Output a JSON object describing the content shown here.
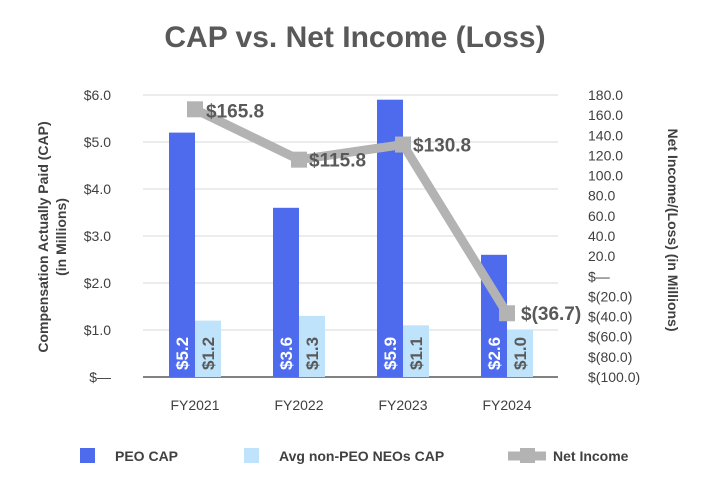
{
  "chart_data": {
    "type": "bar+line",
    "title": "CAP vs. Net Income (Loss)",
    "categories": [
      "FY2021",
      "FY2022",
      "FY2023",
      "FY2024"
    ],
    "ylabel": [
      "Compensation Actually Paid (CAP)",
      "(in Millions)"
    ],
    "y2label": "Net Income/(Loss) (in Millions)",
    "ylim": [
      0,
      6
    ],
    "y_ticks": [
      0,
      1,
      2,
      3,
      4,
      5,
      6
    ],
    "y_tick_labels": [
      "$—",
      "$1.0",
      "$2.0",
      "$3.0",
      "$4.0",
      "$5.0",
      "$6.0"
    ],
    "y2lim": [
      -100,
      180
    ],
    "y2_ticks": [
      -100,
      -80,
      -60,
      -40,
      -20,
      0,
      20,
      40,
      60,
      80,
      100,
      120,
      140,
      160,
      180
    ],
    "y2_tick_labels": [
      "$(100.0)",
      "$(80.0)",
      "$(60.0)",
      "$(40.0)",
      "$(20.0)",
      "$—",
      "20.0",
      "40.0",
      "60.0",
      "80.0",
      "100.0",
      "120.0",
      "140.0",
      "160.0",
      "180.0"
    ],
    "grid": true,
    "legend_position": "bottom",
    "series": [
      {
        "name": "PEO CAP",
        "kind": "bar",
        "axis": "left",
        "color": "#4f6bed",
        "label_color": "#ffffff",
        "values": [
          5.2,
          3.6,
          5.9,
          2.6
        ],
        "labels": [
          "$5.2",
          "$3.6",
          "$5.9",
          "$2.6"
        ]
      },
      {
        "name": "Avg non-PEO NEOs CAP",
        "kind": "bar",
        "axis": "left",
        "color": "#bfe3fb",
        "label_color": "#595959",
        "values": [
          1.2,
          1.3,
          1.1,
          1.0
        ],
        "labels": [
          "$1.2",
          "$1.3",
          "$1.1",
          "$1.0"
        ]
      },
      {
        "name": "Net Income",
        "kind": "line",
        "axis": "right",
        "color": "#b3b3b3",
        "values": [
          165.8,
          115.8,
          130.8,
          -36.7
        ],
        "labels": [
          "$165.8",
          "$115.8",
          "$130.8",
          "$(36.7)"
        ]
      }
    ]
  }
}
